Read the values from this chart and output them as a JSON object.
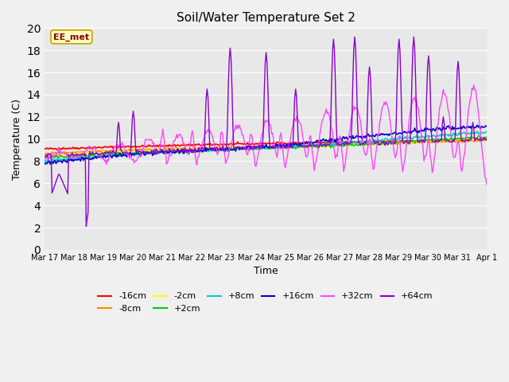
{
  "title": "Soil/Water Temperature Set 2",
  "xlabel": "Time",
  "ylabel": "Temperature (C)",
  "ylim": [
    0,
    20
  ],
  "yticks": [
    0,
    2,
    4,
    6,
    8,
    10,
    12,
    14,
    16,
    18,
    20
  ],
  "bg_color": "#e8e8e8",
  "plot_bg_color": "#e8e8e8",
  "annotation_text": "EE_met",
  "annotation_bg": "#ffffc0",
  "annotation_border": "#c8a000",
  "series": [
    {
      "label": "-16cm",
      "color": "#ff0000"
    },
    {
      "label": "-8cm",
      "color": "#ff8800"
    },
    {
      "label": "-2cm",
      "color": "#ffff00"
    },
    {
      "label": "+2cm",
      "color": "#00cc00"
    },
    {
      "label": "+8cm",
      "color": "#00cccc"
    },
    {
      "label": "+16cm",
      "color": "#0000cc"
    },
    {
      "label": "+32cm",
      "color": "#ff44ff"
    },
    {
      "label": "+64cm",
      "color": "#8800cc"
    }
  ],
  "x_tick_labels": [
    "Mar 17",
    "Mar 18",
    "Mar 19",
    "Mar 20",
    "Mar 21",
    "Mar 22",
    "Mar 23",
    "Mar 24",
    "Mar 25",
    "Mar 26",
    "Mar 27",
    "Mar 28",
    "Mar 29",
    "Mar 30",
    "Mar 31",
    "Apr 1"
  ],
  "n_points": 480
}
